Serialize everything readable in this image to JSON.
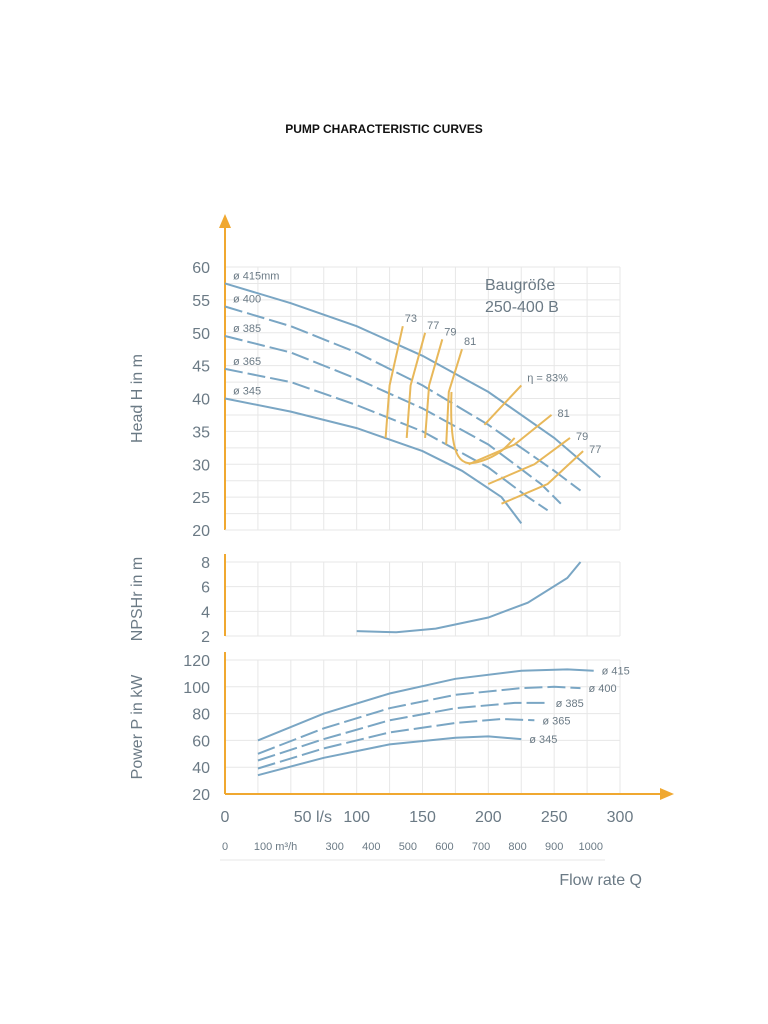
{
  "title": "PUMP CHARACTERISTIC CURVES",
  "chart_data": [
    {
      "type": "line",
      "name": "head",
      "ylabel": "Head H in m",
      "ylim": [
        20,
        60
      ],
      "yticks": [
        20,
        25,
        30,
        35,
        40,
        45,
        50,
        55,
        60
      ],
      "xlim": [
        0,
        300
      ],
      "annotation": [
        "Baugröße",
        "250-400 B"
      ],
      "series": [
        {
          "name": "ø 415mm",
          "points": [
            [
              0,
              57.5
            ],
            [
              50,
              54.5
            ],
            [
              100,
              51
            ],
            [
              150,
              46.5
            ],
            [
              200,
              41
            ],
            [
              250,
              34
            ],
            [
              285,
              28
            ]
          ]
        },
        {
          "name": "ø 400",
          "points": [
            [
              0,
              54
            ],
            [
              50,
              51
            ],
            [
              100,
              47
            ],
            [
              150,
              42
            ],
            [
              200,
              36
            ],
            [
              250,
              29
            ],
            [
              270,
              26
            ]
          ]
        },
        {
          "name": "ø 385",
          "points": [
            [
              0,
              49.5
            ],
            [
              50,
              47
            ],
            [
              100,
              43
            ],
            [
              150,
              38.5
            ],
            [
              200,
              33
            ],
            [
              240,
              27
            ],
            [
              255,
              24
            ]
          ]
        },
        {
          "name": "ø 365",
          "points": [
            [
              0,
              44.5
            ],
            [
              50,
              42.5
            ],
            [
              100,
              39
            ],
            [
              150,
              35
            ],
            [
              200,
              29.5
            ],
            [
              230,
              25
            ],
            [
              245,
              23
            ]
          ]
        },
        {
          "name": "ø 345",
          "points": [
            [
              0,
              40
            ],
            [
              50,
              38
            ],
            [
              100,
              35.5
            ],
            [
              150,
              32
            ],
            [
              180,
              29
            ],
            [
              210,
              25
            ],
            [
              225,
              21
            ]
          ]
        }
      ],
      "efficiency_lines": [
        {
          "label": "73",
          "points": [
            [
              122,
              34
            ],
            [
              125,
              42
            ],
            [
              135,
              51
            ]
          ]
        },
        {
          "label": "77",
          "points": [
            [
              138,
              34
            ],
            [
              141,
              42
            ],
            [
              152,
              50
            ]
          ]
        },
        {
          "label": "79",
          "points": [
            [
              152,
              34
            ],
            [
              155,
              42
            ],
            [
              165,
              49
            ]
          ]
        },
        {
          "label": "81",
          "points": [
            [
              168,
              33
            ],
            [
              170,
              41
            ],
            [
              180,
              47.5
            ]
          ]
        }
      ],
      "efficiency_right": [
        {
          "label": "η = 83%",
          "points": [
            [
              197,
              36
            ],
            [
              225,
              42
            ]
          ]
        },
        {
          "label": "81",
          "points": [
            [
              185,
              30
            ],
            [
              220,
              33
            ],
            [
              248,
              37.5
            ]
          ]
        },
        {
          "label": "79",
          "points": [
            [
              200,
              27
            ],
            [
              235,
              30
            ],
            [
              262,
              34
            ]
          ]
        },
        {
          "label": "77",
          "points": [
            [
              210,
              24
            ],
            [
              245,
              27
            ],
            [
              272,
              32
            ]
          ]
        }
      ]
    },
    {
      "type": "line",
      "name": "npsh",
      "ylabel": "NPSHr in m",
      "ylim": [
        2,
        8
      ],
      "yticks": [
        2,
        4,
        6,
        8
      ],
      "series": [
        {
          "name": "NPSHr",
          "points": [
            [
              100,
              2.4
            ],
            [
              130,
              2.3
            ],
            [
              160,
              2.6
            ],
            [
              200,
              3.5
            ],
            [
              230,
              4.7
            ],
            [
              260,
              6.7
            ],
            [
              270,
              8
            ]
          ]
        }
      ]
    },
    {
      "type": "line",
      "name": "power",
      "ylabel": "Power P in kW",
      "ylim": [
        20,
        120
      ],
      "yticks": [
        20,
        40,
        60,
        80,
        100,
        120
      ],
      "xlabel": "Flow rate Q",
      "xticks": [
        0,
        50,
        100,
        150,
        200,
        250,
        300
      ],
      "xunit": "l/s",
      "x2ticks": [
        0,
        100,
        300,
        400,
        500,
        600,
        700,
        800,
        900,
        1000
      ],
      "x2unit": "m³/h",
      "series": [
        {
          "name": "ø 415",
          "points": [
            [
              25,
              60
            ],
            [
              75,
              80
            ],
            [
              125,
              95
            ],
            [
              175,
              106
            ],
            [
              225,
              112
            ],
            [
              260,
              113
            ],
            [
              280,
              112
            ]
          ]
        },
        {
          "name": "ø 400",
          "points": [
            [
              25,
              50
            ],
            [
              75,
              69
            ],
            [
              125,
              84
            ],
            [
              175,
              94
            ],
            [
              225,
              99
            ],
            [
              250,
              100
            ],
            [
              270,
              99
            ]
          ]
        },
        {
          "name": "ø 385",
          "points": [
            [
              25,
              45
            ],
            [
              75,
              61
            ],
            [
              125,
              75
            ],
            [
              175,
              84
            ],
            [
              220,
              88
            ],
            [
              245,
              88
            ]
          ]
        },
        {
          "name": "ø 365",
          "points": [
            [
              25,
              39
            ],
            [
              75,
              54
            ],
            [
              125,
              66
            ],
            [
              175,
              73
            ],
            [
              210,
              76
            ],
            [
              235,
              75
            ]
          ]
        },
        {
          "name": "ø 345",
          "points": [
            [
              25,
              34
            ],
            [
              75,
              47
            ],
            [
              125,
              57
            ],
            [
              175,
              62
            ],
            [
              200,
              63
            ],
            [
              225,
              61
            ]
          ]
        }
      ]
    }
  ]
}
